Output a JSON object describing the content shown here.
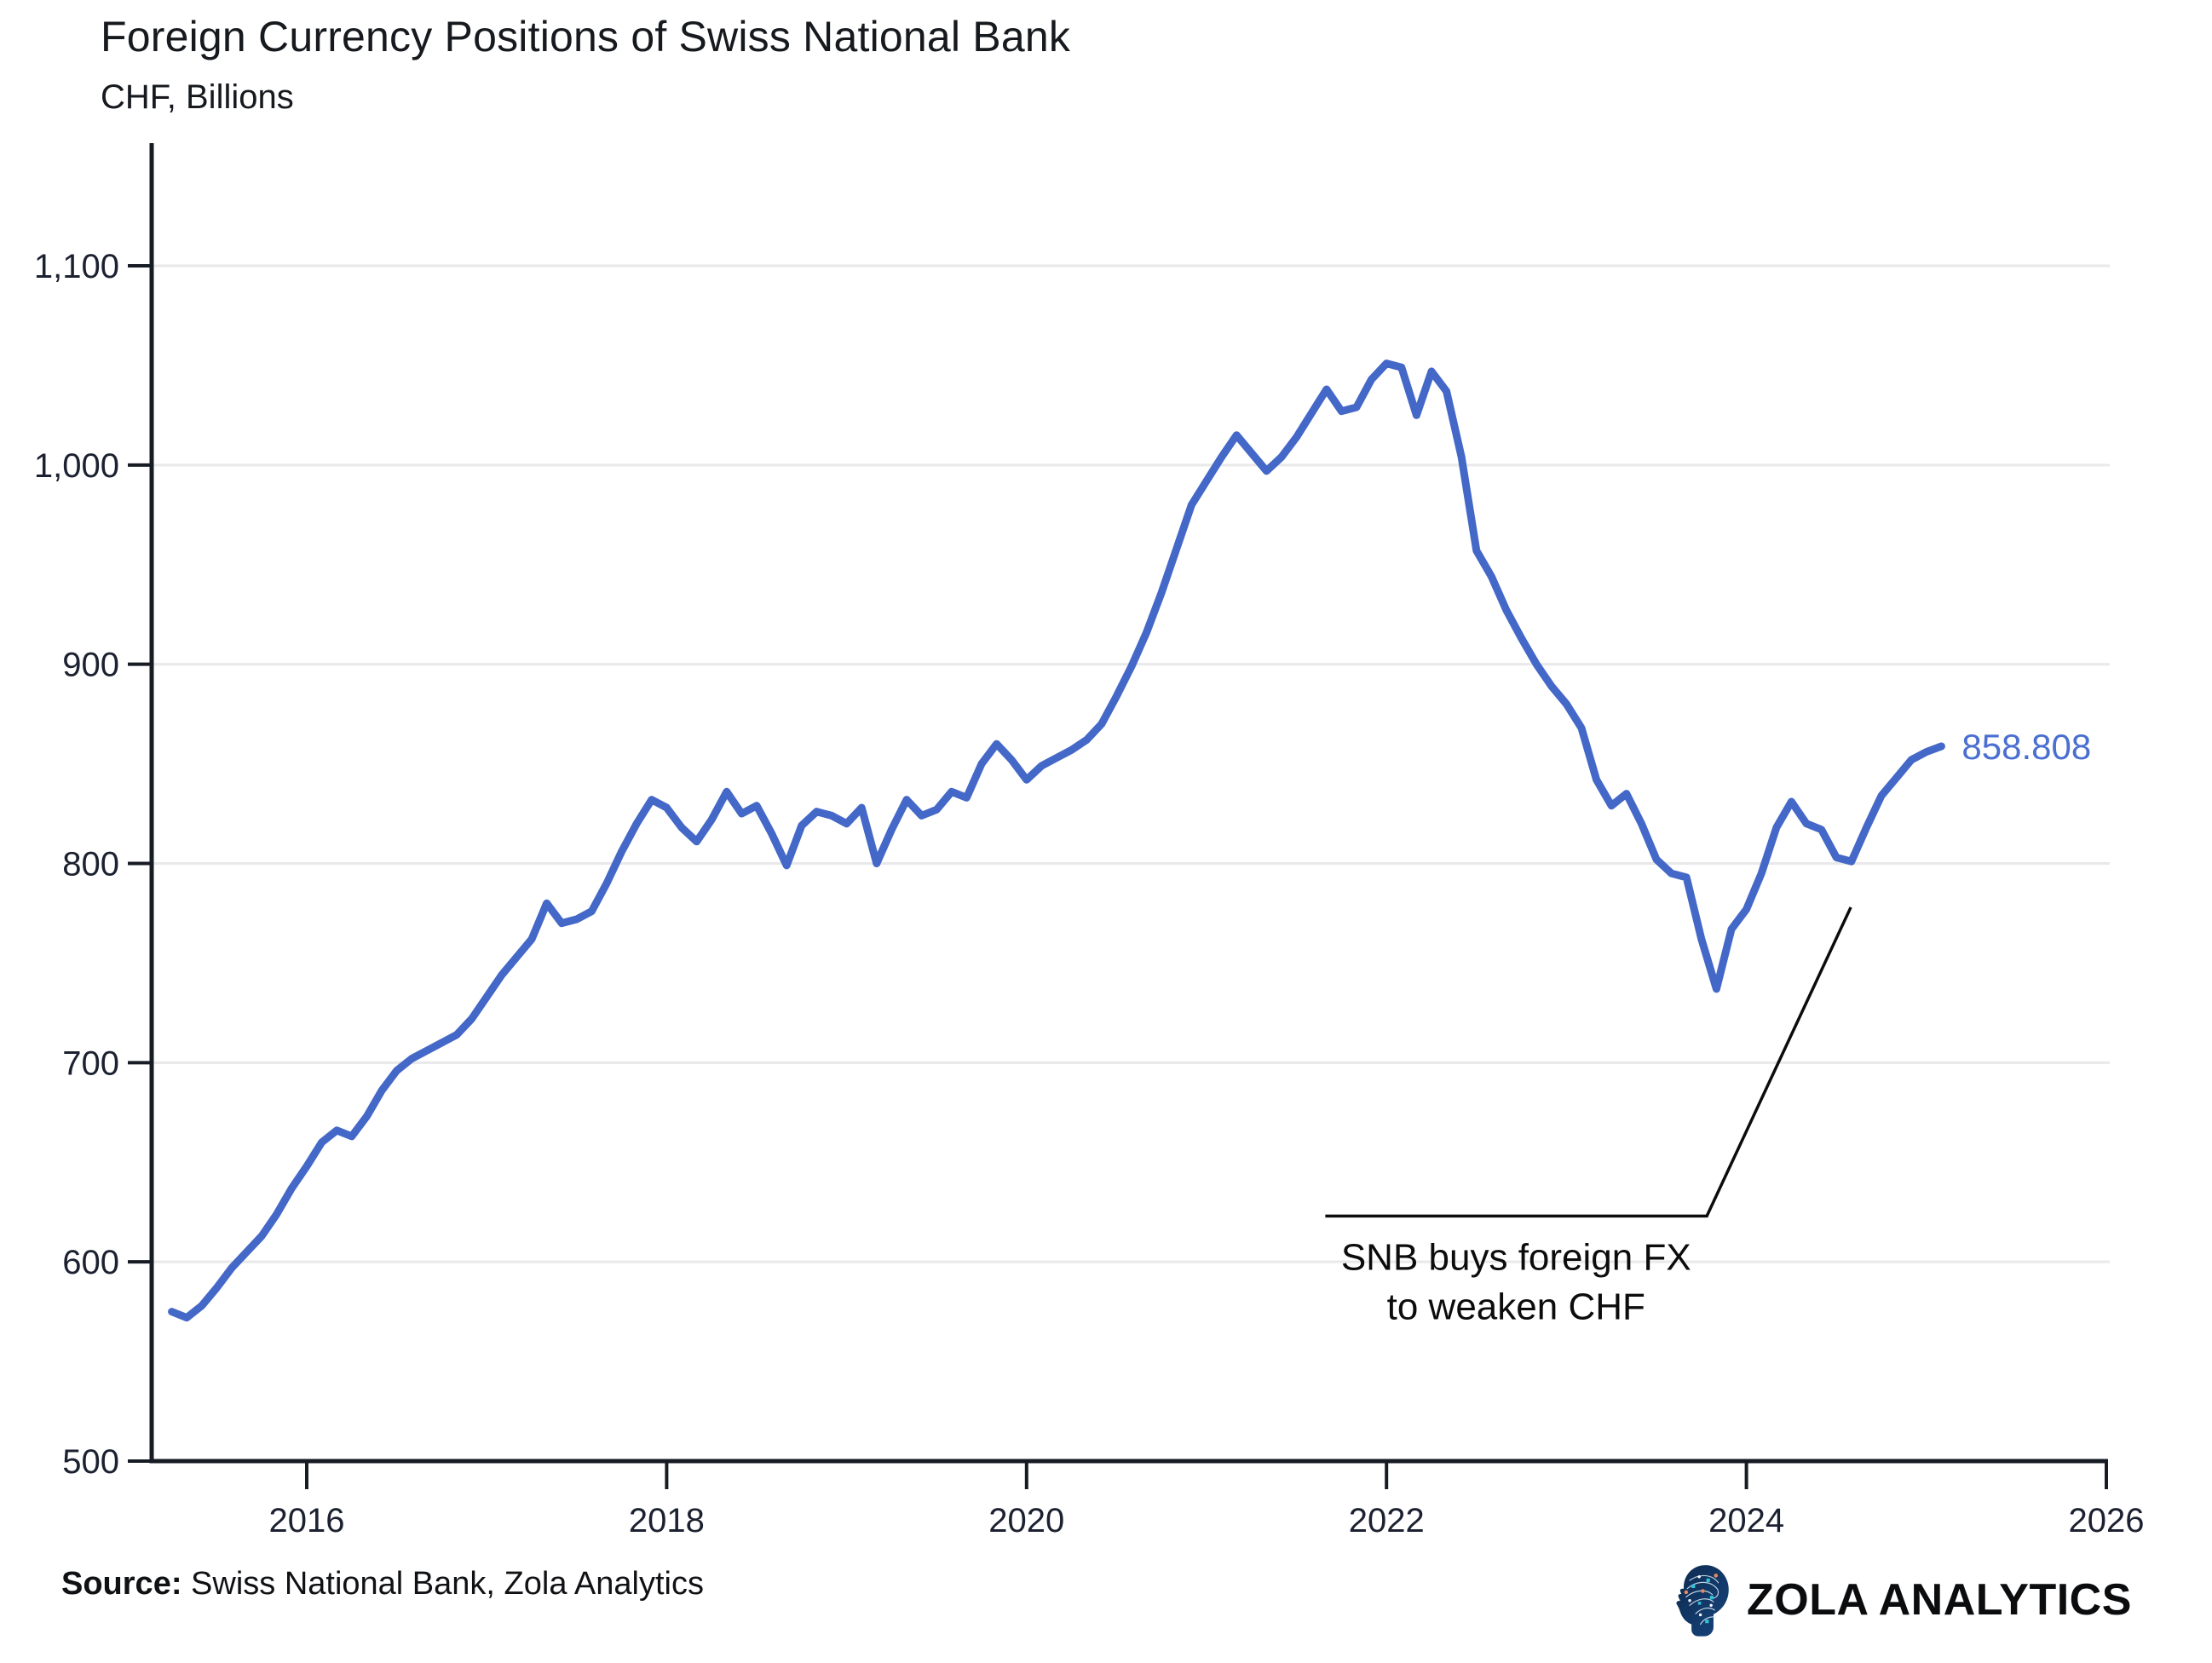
{
  "header": {
    "title": "Foreign Currency Positions of Swiss National Bank",
    "subtitle": "CHF, Billions"
  },
  "footer": {
    "source_label": "Source:",
    "source_text": " Swiss National Bank, Zola Analytics",
    "brand": "ZOLA ANALYTICS"
  },
  "colors": {
    "line": "#4468c8",
    "end_label": "#4a6fd0",
    "axis": "#171b24",
    "tick_text": "#1b2130",
    "grid": "#e9e9eb",
    "annotation": "#0c0c0c",
    "logo_navy": "#10365f",
    "logo_teal": "#2ec4d6",
    "logo_orange": "#e98a5f"
  },
  "chart_data": {
    "type": "line",
    "title": "Foreign Currency Positions of Swiss National Bank",
    "subtitle": "CHF, Billions",
    "series_name": "Foreign currency positions (CHF bn)",
    "frequency": "monthly",
    "start_year": 2015,
    "start_month": 4,
    "values": [
      575,
      572,
      578,
      587,
      597,
      605,
      613,
      624,
      637,
      648,
      660,
      666,
      663,
      673,
      686,
      696,
      702,
      706,
      710,
      714,
      722,
      733,
      744,
      753,
      762,
      780,
      770,
      772,
      776,
      790,
      806,
      820,
      832,
      828,
      818,
      811,
      822,
      836,
      825,
      829,
      815,
      799,
      819,
      826,
      824,
      820,
      828,
      800,
      817,
      832,
      824,
      827,
      836,
      833,
      850,
      860,
      852,
      842,
      849,
      853,
      857,
      862,
      870,
      884,
      899,
      916,
      936,
      958,
      980,
      992,
      1004,
      1015,
      1006,
      997,
      1004,
      1014,
      1026,
      1038,
      1027,
      1029,
      1043,
      1051,
      1049,
      1025,
      1047,
      1037,
      1004,
      957,
      944,
      927,
      913,
      900,
      889,
      880,
      868,
      842,
      829,
      835,
      820,
      802,
      795,
      793,
      762,
      737,
      767,
      777,
      795,
      818,
      831,
      820,
      817,
      803,
      801,
      818,
      834,
      843,
      852,
      856,
      858.808
    ],
    "last_value": 858.808,
    "last_value_label": "858.808",
    "ylabel": "CHF, Billions",
    "ylim": [
      500,
      1150
    ],
    "xlim": [
      2015.25,
      2026.3
    ],
    "grid": "horizontal",
    "legend": "none",
    "y_axis": {
      "ticks": [
        {
          "value": 500,
          "label": "500"
        },
        {
          "value": 600,
          "label": "600"
        },
        {
          "value": 700,
          "label": "700"
        },
        {
          "value": 800,
          "label": "800"
        },
        {
          "value": 900,
          "label": "900"
        },
        {
          "value": 1000,
          "label": "1,000"
        },
        {
          "value": 1100,
          "label": "1,100"
        }
      ]
    },
    "x_axis": {
      "ticks": [
        {
          "value": 2016,
          "label": "2016"
        },
        {
          "value": 2018,
          "label": "2018"
        },
        {
          "value": 2020,
          "label": "2020"
        },
        {
          "value": 2022,
          "label": "2022"
        },
        {
          "value": 2024,
          "label": "2024"
        },
        {
          "value": 2026,
          "label": "2026"
        }
      ]
    },
    "annotation": {
      "lines": [
        "SNB buys foreign FX",
        "to weaken CHF"
      ],
      "leader_points": [
        [
          2021.66,
          623
        ],
        [
          2023.78,
          623
        ],
        [
          2024.58,
          778
        ]
      ]
    }
  }
}
